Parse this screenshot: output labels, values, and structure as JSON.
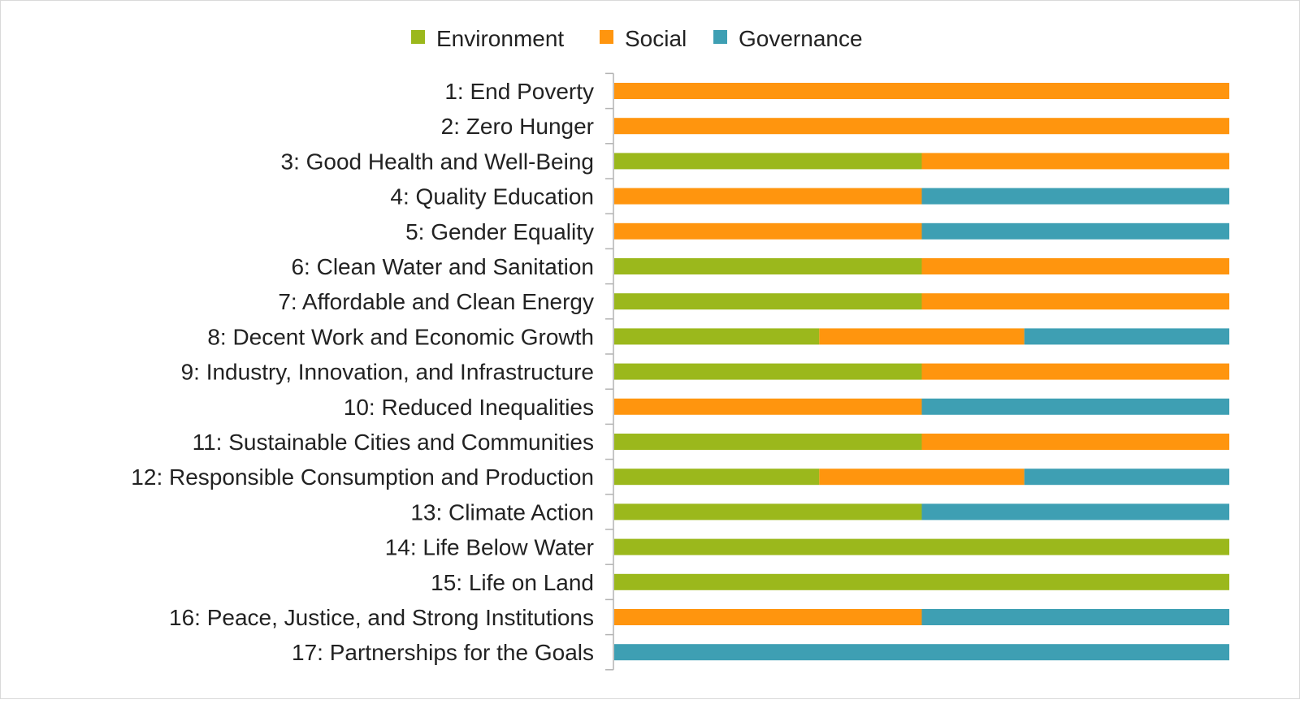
{
  "chart_data": {
    "type": "bar",
    "orientation": "horizontal",
    "stacked": "percent",
    "legend_position": "top",
    "grid": false,
    "xlim": [
      0,
      1
    ],
    "categories": [
      "1: End Poverty",
      "2: Zero Hunger",
      "3: Good Health and Well-Being",
      "4: Quality Education",
      "5: Gender Equality",
      "6: Clean Water and Sanitation",
      "7: Affordable and Clean Energy",
      "8: Decent Work and Economic Growth",
      "9: Industry, Innovation, and Infrastructure",
      "10: Reduced Inequalities",
      "11: Sustainable Cities and Communities",
      "12: Responsible Consumption and Production",
      "13: Climate Action",
      "14: Life Below Water",
      "15: Life on Land",
      "16: Peace, Justice, and Strong Institutions",
      "17: Partnerships for the Goals"
    ],
    "series": [
      {
        "name": "Environment",
        "color": "#9bb81c",
        "values": [
          0,
          0,
          1,
          0,
          0,
          1,
          1,
          1,
          1,
          0,
          1,
          1,
          1,
          1,
          1,
          0,
          0
        ]
      },
      {
        "name": "Social",
        "color": "#ff950e",
        "values": [
          1,
          1,
          1,
          1,
          1,
          1,
          1,
          1,
          1,
          1,
          1,
          1,
          0,
          0,
          0,
          1,
          0
        ]
      },
      {
        "name": "Governance",
        "color": "#3e9fb3",
        "values": [
          0,
          0,
          0,
          1,
          1,
          0,
          0,
          1,
          0,
          1,
          0,
          1,
          1,
          0,
          0,
          1,
          1
        ]
      }
    ]
  }
}
